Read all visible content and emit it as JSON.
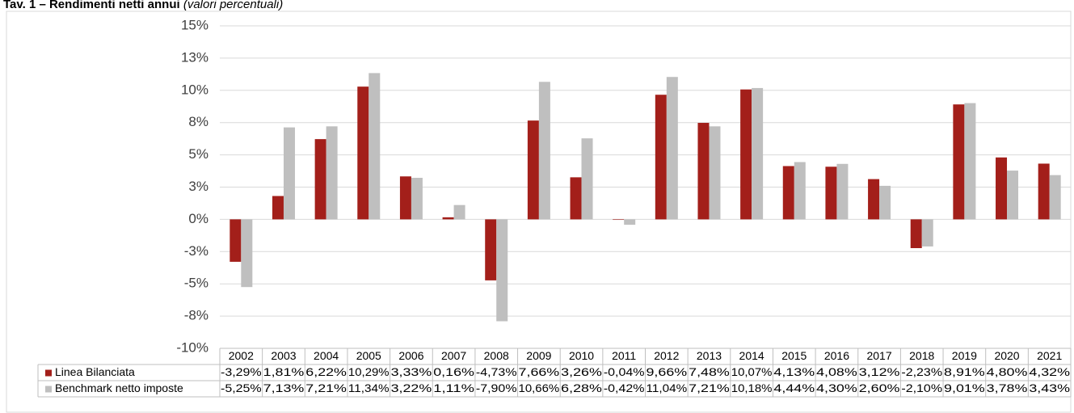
{
  "chart_data": {
    "type": "bar",
    "title": "Tav. 1 – Rendimenti netti annui",
    "subtitle": "(valori percentuali)",
    "categories": [
      "2002",
      "2003",
      "2004",
      "2005",
      "2006",
      "2007",
      "2008",
      "2009",
      "2010",
      "2011",
      "2012",
      "2013",
      "2014",
      "2015",
      "2016",
      "2017",
      "2018",
      "2019",
      "2020",
      "2021"
    ],
    "series": [
      {
        "name": "Linea Bilanciata",
        "color": "#a31f1a",
        "values": [
          -3.29,
          1.81,
          6.22,
          10.29,
          3.33,
          0.16,
          -4.73,
          7.66,
          3.26,
          -0.04,
          9.66,
          7.48,
          10.07,
          4.13,
          4.08,
          3.12,
          -2.23,
          8.91,
          4.8,
          4.32
        ],
        "value_labels": [
          "-3,29%",
          "1,81%",
          "6,22%",
          "10,29%",
          "3,33%",
          "0,16%",
          "-4,73%",
          "7,66%",
          "3,26%",
          "-0,04%",
          "9,66%",
          "7,48%",
          "10,07%",
          "4,13%",
          "4,08%",
          "3,12%",
          "-2,23%",
          "8,91%",
          "4,80%",
          "4,32%"
        ]
      },
      {
        "name": "Benchmark netto imposte",
        "color": "#bfbfbf",
        "values": [
          -5.25,
          7.13,
          7.21,
          11.34,
          3.22,
          1.11,
          -7.9,
          10.66,
          6.28,
          -0.42,
          11.04,
          7.21,
          10.18,
          4.44,
          4.3,
          2.6,
          -2.1,
          9.01,
          3.78,
          3.43
        ],
        "value_labels": [
          "-5,25%",
          "7,13%",
          "7,21%",
          "11,34%",
          "3,22%",
          "1,11%",
          "-7,90%",
          "10,66%",
          "6,28%",
          "-0,42%",
          "11,04%",
          "7,21%",
          "10,18%",
          "4,44%",
          "4,30%",
          "2,60%",
          "-2,10%",
          "9,01%",
          "3,78%",
          "3,43%"
        ]
      }
    ],
    "ylim": [
      -10,
      15
    ],
    "yticks": [
      {
        "value": -10,
        "label": "-10%"
      },
      {
        "value": -7.5,
        "label": "-8%"
      },
      {
        "value": -5,
        "label": "-5%"
      },
      {
        "value": -2.5,
        "label": "-3%"
      },
      {
        "value": 0,
        "label": "0%"
      },
      {
        "value": 2.5,
        "label": "3%"
      },
      {
        "value": 5,
        "label": "5%"
      },
      {
        "value": 7.5,
        "label": "8%"
      },
      {
        "value": 10,
        "label": "10%"
      },
      {
        "value": 12.5,
        "label": "13%"
      },
      {
        "value": 15,
        "label": "15%"
      }
    ],
    "grid": true
  }
}
